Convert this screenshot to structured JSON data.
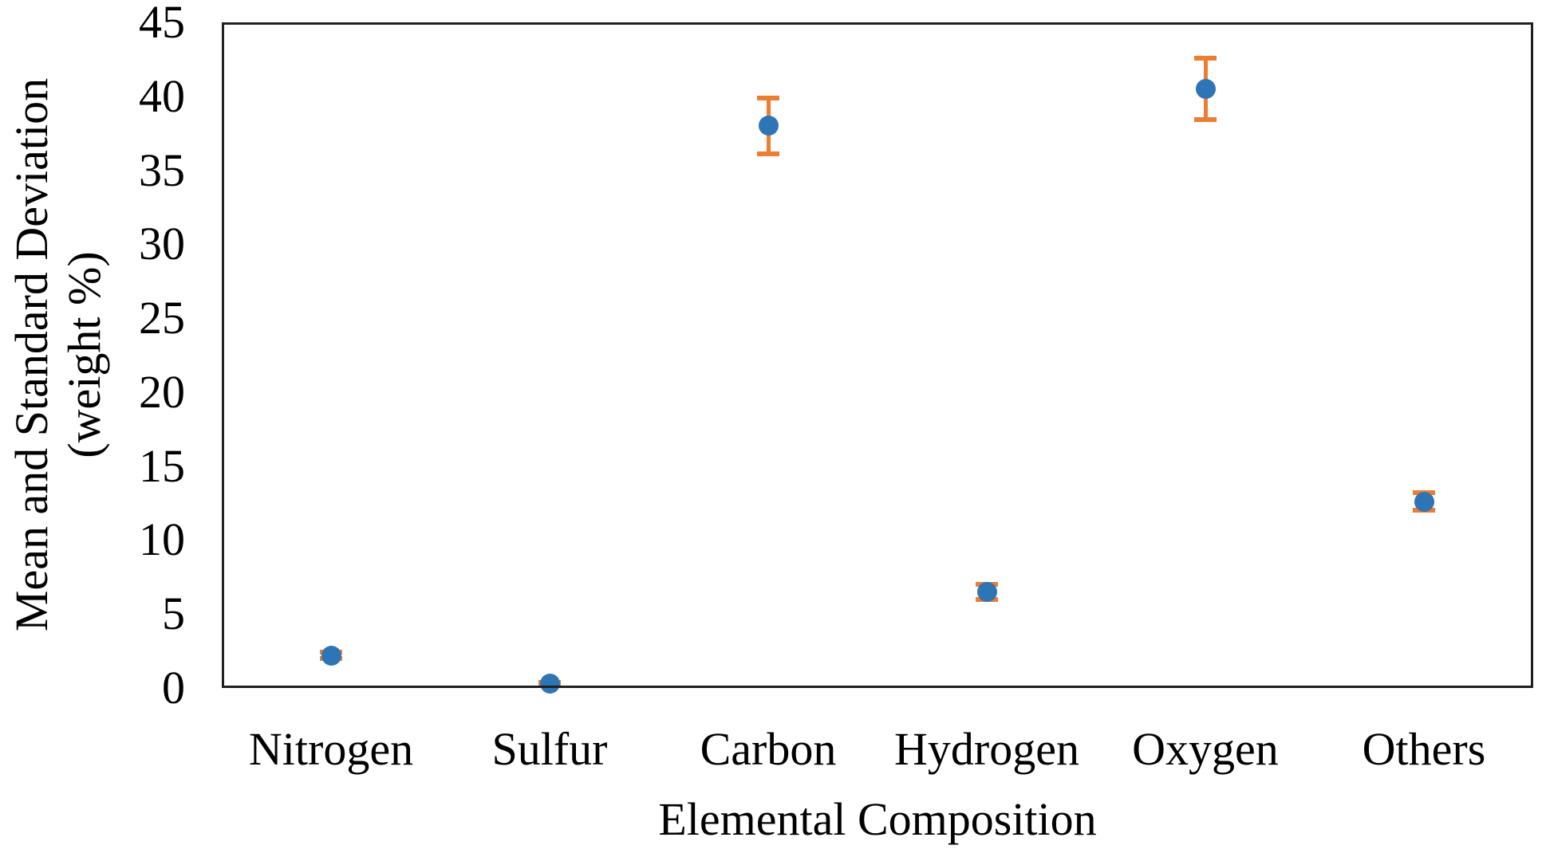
{
  "chart_data": {
    "type": "scatter",
    "title": "",
    "xlabel": "Elemental Composition",
    "ylabel": "Mean and Standard Deviation (weight %)",
    "ylabel_lines": [
      "Mean and Standard Deviation",
      "(weight %)"
    ],
    "categories": [
      "Nitrogen",
      "Sulfur",
      "Carbon",
      "Hydrogen",
      "Oxygen",
      "Others"
    ],
    "series": [
      {
        "name": "Mean",
        "values": [
          2.2,
          0.3,
          38.0,
          6.5,
          40.5,
          12.6
        ],
        "error_sd": [
          0.2,
          0.1,
          1.9,
          0.5,
          2.1,
          0.6
        ]
      }
    ],
    "ylim": [
      0,
      45
    ],
    "y_tick_step": 5,
    "y_ticks": [
      0,
      5,
      10,
      15,
      20,
      25,
      30,
      35,
      40,
      45
    ],
    "grid": false,
    "legend_position": "none",
    "colors": {
      "marker": "#2E75B6",
      "error_bar": "#ED7D31",
      "axis_frame": "#1F1F1F",
      "text": "#000000",
      "background": "#FFFFFF"
    }
  }
}
